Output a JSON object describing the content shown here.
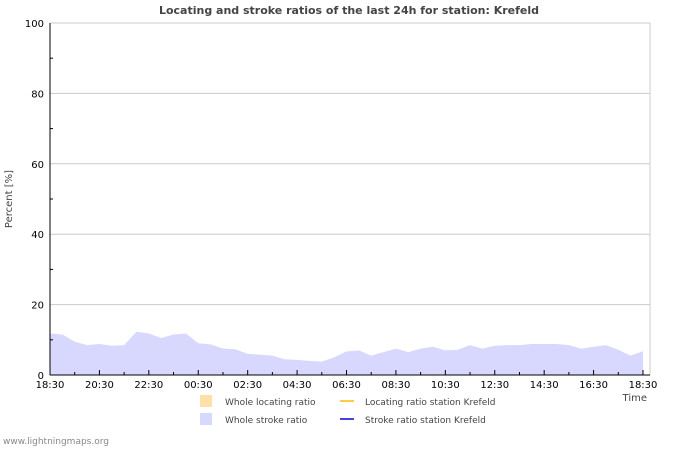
{
  "chart_data": {
    "type": "area",
    "title": "Locating and stroke ratios of the last 24h for station: Krefeld",
    "xlabel": "Time",
    "ylabel": "Percent   [%]",
    "ylim": [
      0,
      100
    ],
    "yticks": [
      0,
      20,
      40,
      60,
      80,
      100
    ],
    "xtick_labels": [
      "18:30",
      "20:30",
      "22:30",
      "00:30",
      "02:30",
      "04:30",
      "06:30",
      "08:30",
      "10:30",
      "12:30",
      "14:30",
      "16:30",
      "18:30"
    ],
    "grid": true,
    "legend_placement": "bottom",
    "x_hours": 24,
    "series": [
      {
        "name": "Whole locating ratio",
        "kind": "area",
        "color": "#ffe0a8",
        "values": [
          0.3,
          0.3,
          0.3,
          0.2,
          0.3,
          0.3,
          0.3,
          0.3,
          0.3,
          0.3,
          0.3,
          0.3,
          0.3,
          0.3,
          0.3,
          0.3,
          0.3,
          0.3,
          0.3,
          0.3,
          0.3,
          0.3,
          0.3,
          0.4,
          0.5,
          0.4,
          0.3,
          0.3,
          0.3,
          0.3,
          0.5,
          0.8,
          1.0,
          1.0,
          0.5,
          0.3,
          0.3,
          0.4,
          0.3,
          0.3,
          0.3,
          0.3,
          0.3,
          0.3,
          0.3,
          0.3,
          0.3,
          0.3,
          0.3
        ]
      },
      {
        "name": "Whole stroke ratio",
        "kind": "area",
        "color": "#d8d8ff",
        "values": [
          11.8,
          11.5,
          9.5,
          8.5,
          8.8,
          8.3,
          8.5,
          12.3,
          11.8,
          10.5,
          11.5,
          11.8,
          9.0,
          8.7,
          7.5,
          7.3,
          6.0,
          5.8,
          5.5,
          4.5,
          4.3,
          4.0,
          3.8,
          5.0,
          6.7,
          7.0,
          5.5,
          6.5,
          7.5,
          6.5,
          7.5,
          8.0,
          7.0,
          7.2,
          8.5,
          7.5,
          8.3,
          8.5,
          8.5,
          8.8,
          8.8,
          8.8,
          8.5,
          7.5,
          8.0,
          8.5,
          7.2,
          5.5,
          6.8
        ]
      },
      {
        "name": "Locating ratio station Krefeld",
        "kind": "line",
        "color": "#ffcc44",
        "values": []
      },
      {
        "name": "Stroke ratio station Krefeld",
        "kind": "line",
        "color": "#4444dd",
        "values": []
      }
    ]
  },
  "footer": "www.lightningmaps.org"
}
